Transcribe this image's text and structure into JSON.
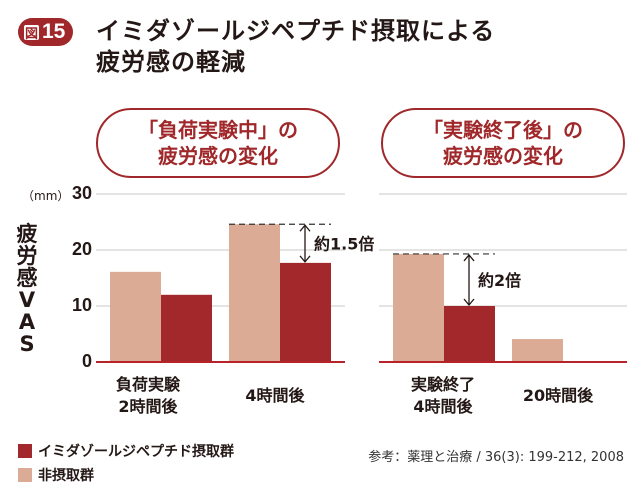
{
  "figure": {
    "badge_kanji": "図",
    "badge_number": "15",
    "title_line1": "イミダゾールジペプチド摂取による",
    "title_line2": "疲労感の軽減"
  },
  "chart_data": {
    "type": "bar",
    "title": "イミダゾールジペプチド摂取による疲労感の軽減",
    "ylabel": "疲労感VAS",
    "yunit": "（mm）",
    "ylim": [
      0,
      30
    ],
    "yticks": [
      0,
      10,
      20,
      30
    ],
    "grid": true,
    "colors": {
      "intake": "#a3282b",
      "non_intake": "#dcab96",
      "axis": "#b8232a",
      "grid": "#d4d4d4"
    },
    "series": [
      {
        "name": "イミダゾールジペプチド摂取群",
        "key": "intake"
      },
      {
        "name": "非摂取群",
        "key": "non_intake"
      }
    ],
    "panels": [
      {
        "heading_line1": "「負荷実験中」の",
        "heading_line2": "疲労感の変化",
        "groups": [
          {
            "label_line1": "負荷実験",
            "label_line2": "2時間後",
            "non_intake": 16.1,
            "intake": 12.0
          },
          {
            "label_line1": "4時間後",
            "label_line2": "",
            "non_intake": 24.6,
            "intake": 17.7
          }
        ],
        "annotation": {
          "text": "約1.5倍",
          "group_index": 1
        }
      },
      {
        "heading_line1": "「実験終了後」の",
        "heading_line2": "疲労感の変化",
        "groups": [
          {
            "label_line1": "実験終了",
            "label_line2": "4時間後",
            "non_intake": 19.3,
            "intake": 10.0
          },
          {
            "label_line1": "20時間後",
            "label_line2": "",
            "non_intake": 4.1,
            "intake": null
          }
        ],
        "annotation": {
          "text": "約2倍",
          "group_index": 0
        }
      }
    ],
    "legend_position": "bottom-left"
  },
  "source": "参考：薬理と治療 / 36(3): 199-212, 2008"
}
